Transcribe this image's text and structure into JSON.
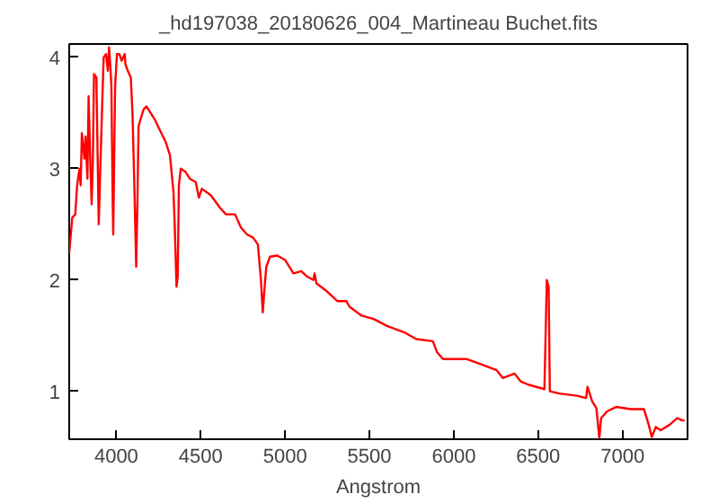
{
  "chart_data": {
    "type": "line",
    "title": "_hd197038_20180626_004_Martineau Buchet.fits",
    "xlabel": "Angstrom",
    "xlim": [
      3721,
      7385
    ],
    "ylim": [
      0.57,
      4.12
    ],
    "xticks": [
      4000,
      4500,
      5000,
      5500,
      6000,
      6500,
      7000
    ],
    "yticks": [
      1,
      2,
      3,
      4
    ],
    "grid": false,
    "marker": "none",
    "line_style": "solid",
    "series": [
      {
        "color": "#ff0000",
        "x": [
          3721,
          3739,
          3757,
          3768,
          3782,
          3789,
          3796,
          3811,
          3818,
          3829,
          3836,
          3846,
          3854,
          3861,
          3868,
          3882,
          3896,
          3907,
          3918,
          3925,
          3939,
          3950,
          3957,
          3964,
          3971,
          3979,
          3982,
          3993,
          4004,
          4018,
          4032,
          4050,
          4054,
          4068,
          4086,
          4096,
          4107,
          4118,
          4125,
          4132,
          4143,
          4161,
          4179,
          4204,
          4229,
          4257,
          4293,
          4318,
          4339,
          4346,
          4357,
          4364,
          4371,
          4382,
          4411,
          4436,
          4471,
          4489,
          4507,
          4561,
          4614,
          4650,
          4704,
          4739,
          4775,
          4811,
          4839,
          4857,
          4868,
          4879,
          4889,
          4911,
          4954,
          5000,
          5050,
          5096,
          5132,
          5168,
          5175,
          5186,
          5239,
          5311,
          5364,
          5382,
          5454,
          5525,
          5601,
          5707,
          5777,
          5876,
          5901,
          5936,
          5989,
          6078,
          6166,
          6254,
          6290,
          6360,
          6396,
          6442,
          6537,
          6551,
          6562,
          6569,
          6625,
          6731,
          6784,
          6792,
          6820,
          6845,
          6862,
          6873,
          6908,
          6961,
          7049,
          7127,
          7155,
          7173,
          7197,
          7226,
          7279,
          7325,
          7350,
          7367
        ],
        "values": [
          2.24,
          2.56,
          2.59,
          2.85,
          3.0,
          2.85,
          3.32,
          3.09,
          3.29,
          2.91,
          3.65,
          3.06,
          2.68,
          3.06,
          3.85,
          3.82,
          2.5,
          3.09,
          3.65,
          4.0,
          4.03,
          3.88,
          4.09,
          3.94,
          3.74,
          2.68,
          2.41,
          3.74,
          4.03,
          4.03,
          3.97,
          4.03,
          3.94,
          3.88,
          3.82,
          3.5,
          2.85,
          2.12,
          2.68,
          3.38,
          3.44,
          3.53,
          3.56,
          3.5,
          3.44,
          3.35,
          3.24,
          3.12,
          2.79,
          2.5,
          1.94,
          2.03,
          2.85,
          3.0,
          2.97,
          2.91,
          2.88,
          2.74,
          2.82,
          2.76,
          2.65,
          2.59,
          2.59,
          2.47,
          2.41,
          2.38,
          2.32,
          2.0,
          1.71,
          1.94,
          2.12,
          2.21,
          2.22,
          2.18,
          2.06,
          2.08,
          2.03,
          2.0,
          2.06,
          1.97,
          1.91,
          1.81,
          1.81,
          1.76,
          1.68,
          1.65,
          1.59,
          1.53,
          1.47,
          1.45,
          1.35,
          1.29,
          1.29,
          1.29,
          1.24,
          1.19,
          1.12,
          1.16,
          1.09,
          1.06,
          1.02,
          2.0,
          1.94,
          1.0,
          0.98,
          0.96,
          0.94,
          1.04,
          0.91,
          0.85,
          0.58,
          0.76,
          0.82,
          0.86,
          0.84,
          0.84,
          0.7,
          0.59,
          0.68,
          0.65,
          0.7,
          0.76,
          0.74,
          0.74
        ]
      }
    ]
  }
}
